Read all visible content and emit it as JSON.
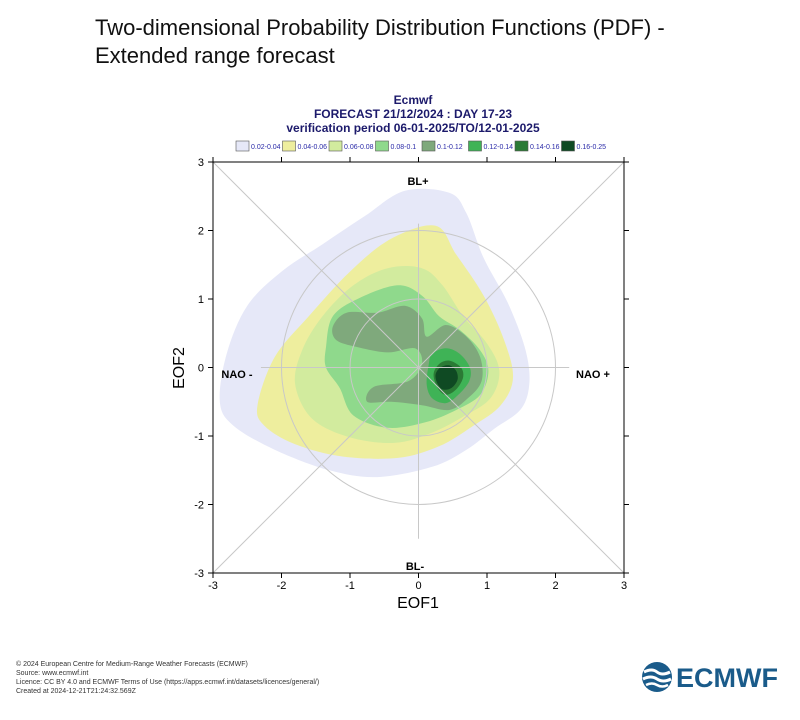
{
  "page": {
    "title": "Two-dimensional Probability Distribution Functions (PDF) - Extended range forecast"
  },
  "chart_data": {
    "type": "contour",
    "header": {
      "line1": "Ecmwf",
      "line2": "FORECAST 21/12/2024 : DAY 17-23",
      "line3": "verification period 06-01-2025/TO/12-01-2025"
    },
    "legend": [
      {
        "label": "0.02-0.04",
        "color": "#e6e8f8"
      },
      {
        "label": "0.04-0.06",
        "color": "#eeee9e"
      },
      {
        "label": "0.06-0.08",
        "color": "#d2eb9e"
      },
      {
        "label": "0.08-0.1",
        "color": "#8fd98c"
      },
      {
        "label": "0.1-0.12",
        "color": "#7fa97c"
      },
      {
        "label": "0.12-0.14",
        "color": "#3fb356"
      },
      {
        "label": "0.14-0.16",
        "color": "#2b7a35"
      },
      {
        "label": "0.16-0.25",
        "color": "#0f4a23"
      }
    ],
    "xlabel": "EOF1",
    "ylabel": "EOF2",
    "xlim": [
      -3,
      3
    ],
    "ylim": [
      -3,
      3
    ],
    "xticks": [
      -3,
      -2,
      -1,
      0,
      1,
      2,
      3
    ],
    "yticks": [
      -3,
      -2,
      -1,
      0,
      1,
      2,
      3
    ],
    "regime_labels": {
      "top": "BL+",
      "bottom": "BL-",
      "left": "NAO -",
      "right": "NAO +"
    },
    "contours": [
      {
        "level": "0.02-0.04",
        "points": [
          [
            -2.9,
            -0.5
          ],
          [
            -2.8,
            0.2
          ],
          [
            -2.5,
            0.9
          ],
          [
            -2.0,
            1.4
          ],
          [
            -1.4,
            1.8
          ],
          [
            -0.8,
            2.2
          ],
          [
            -0.2,
            2.58
          ],
          [
            0.45,
            2.55
          ],
          [
            0.7,
            2.25
          ],
          [
            0.95,
            1.6
          ],
          [
            1.3,
            0.95
          ],
          [
            1.55,
            0.3
          ],
          [
            1.62,
            -0.2
          ],
          [
            1.5,
            -0.6
          ],
          [
            1.1,
            -0.9
          ],
          [
            0.7,
            -1.2
          ],
          [
            0.2,
            -1.45
          ],
          [
            -0.6,
            -1.6
          ],
          [
            -1.3,
            -1.5
          ],
          [
            -2.1,
            -1.2
          ],
          [
            -2.7,
            -0.85
          ]
        ]
      },
      {
        "level": "0.04-0.06",
        "points": [
          [
            -2.35,
            -0.55
          ],
          [
            -2.1,
            0.15
          ],
          [
            -1.6,
            0.75
          ],
          [
            -1.0,
            1.4
          ],
          [
            -0.4,
            1.88
          ],
          [
            0.25,
            2.07
          ],
          [
            0.55,
            1.65
          ],
          [
            0.95,
            1.05
          ],
          [
            1.25,
            0.4
          ],
          [
            1.38,
            -0.15
          ],
          [
            1.2,
            -0.55
          ],
          [
            0.8,
            -0.85
          ],
          [
            0.3,
            -1.15
          ],
          [
            -0.3,
            -1.32
          ],
          [
            -1.1,
            -1.3
          ],
          [
            -1.8,
            -1.12
          ],
          [
            -2.25,
            -0.85
          ]
        ]
      },
      {
        "level": "0.06-0.08",
        "points": [
          [
            -1.8,
            -0.25
          ],
          [
            -1.7,
            0.25
          ],
          [
            -1.4,
            0.75
          ],
          [
            -0.95,
            1.2
          ],
          [
            -0.45,
            1.45
          ],
          [
            0.05,
            1.45
          ],
          [
            0.35,
            1.2
          ],
          [
            0.65,
            0.75
          ],
          [
            1.0,
            0.35
          ],
          [
            1.18,
            -0.05
          ],
          [
            1.05,
            -0.45
          ],
          [
            0.65,
            -0.72
          ],
          [
            0.2,
            -0.95
          ],
          [
            -0.35,
            -1.1
          ],
          [
            -1.0,
            -1.02
          ],
          [
            -1.55,
            -0.75
          ]
        ]
      },
      {
        "level": "0.08-0.1",
        "points": [
          [
            -1.35,
            0.3
          ],
          [
            -1.25,
            0.75
          ],
          [
            -0.85,
            1.02
          ],
          [
            -0.3,
            1.2
          ],
          [
            0.05,
            1.05
          ],
          [
            0.3,
            0.75
          ],
          [
            0.6,
            0.55
          ],
          [
            0.9,
            0.25
          ],
          [
            1.02,
            -0.05
          ],
          [
            0.9,
            -0.4
          ],
          [
            0.55,
            -0.62
          ],
          [
            0.1,
            -0.8
          ],
          [
            -0.45,
            -0.88
          ],
          [
            -0.95,
            -0.7
          ],
          [
            -1.15,
            -0.3
          ],
          [
            -1.35,
            0.0
          ]
        ]
      },
      {
        "level": "0.1-0.12",
        "points": [
          [
            -1.25,
            0.6
          ],
          [
            -1.05,
            0.8
          ],
          [
            -0.6,
            0.8
          ],
          [
            -0.2,
            0.9
          ],
          [
            0.05,
            0.72
          ],
          [
            0.12,
            0.45
          ],
          [
            0.4,
            0.62
          ],
          [
            0.7,
            0.45
          ],
          [
            0.9,
            0.15
          ],
          [
            0.92,
            -0.2
          ],
          [
            0.72,
            -0.45
          ],
          [
            0.45,
            -0.62
          ],
          [
            0.05,
            -0.55
          ],
          [
            -0.4,
            -0.5
          ],
          [
            -0.75,
            -0.5
          ],
          [
            -0.65,
            -0.28
          ],
          [
            -0.15,
            -0.2
          ],
          [
            0.05,
            0.05
          ],
          [
            -0.05,
            0.28
          ],
          [
            -0.45,
            0.22
          ],
          [
            -0.9,
            0.3
          ],
          [
            -1.2,
            0.4
          ]
        ]
      },
      {
        "level": "0.12-0.14",
        "points": [
          [
            0.15,
            0.05
          ],
          [
            0.2,
            0.2
          ],
          [
            0.4,
            0.28
          ],
          [
            0.6,
            0.2
          ],
          [
            0.75,
            0.0
          ],
          [
            0.74,
            -0.2
          ],
          [
            0.58,
            -0.4
          ],
          [
            0.4,
            -0.52
          ],
          [
            0.2,
            -0.45
          ],
          [
            0.12,
            -0.25
          ]
        ]
      },
      {
        "level": "0.14-0.16",
        "points": [
          [
            0.22,
            -0.1
          ],
          [
            0.3,
            0.05
          ],
          [
            0.45,
            0.1
          ],
          [
            0.62,
            0.0
          ],
          [
            0.65,
            -0.15
          ],
          [
            0.55,
            -0.32
          ],
          [
            0.4,
            -0.4
          ],
          [
            0.28,
            -0.3
          ]
        ]
      },
      {
        "level": "0.16-0.25",
        "points": [
          [
            0.25,
            -0.1
          ],
          [
            0.32,
            0.0
          ],
          [
            0.45,
            0.03
          ],
          [
            0.55,
            -0.05
          ],
          [
            0.57,
            -0.18
          ],
          [
            0.48,
            -0.3
          ],
          [
            0.35,
            -0.32
          ],
          [
            0.27,
            -0.22
          ]
        ]
      }
    ]
  },
  "footer": {
    "line1": "© 2024 European Centre for Medium-Range Weather Forecasts (ECMWF)",
    "line2": "Source: www.ecmwf.int",
    "line3": "Licence: CC BY 4.0 and ECMWF Terms of Use (https://apps.ecmwf.int/datasets/licences/general/)",
    "line4": "Created at 2024-12-21T21:24:32.569Z"
  },
  "logo": {
    "text": "ECMWF",
    "color": "#1a5b8a"
  }
}
